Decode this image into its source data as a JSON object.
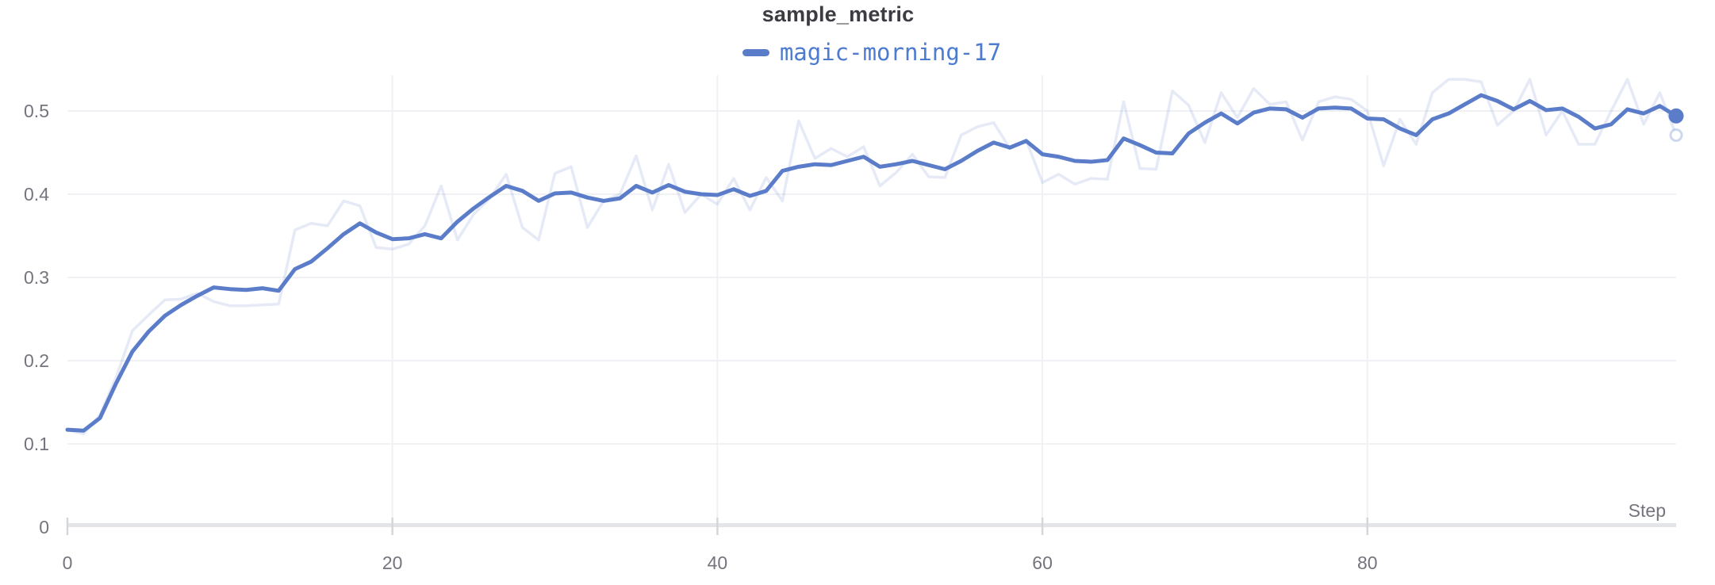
{
  "header": {
    "title": "sample_metric"
  },
  "legend": {
    "run_name": "magic-morning-17"
  },
  "axes": {
    "x_label": "Step",
    "x_ticks": [
      {
        "value": 0,
        "label": "0"
      },
      {
        "value": 20,
        "label": "20"
      },
      {
        "value": 40,
        "label": "40"
      },
      {
        "value": 60,
        "label": "60"
      },
      {
        "value": 80,
        "label": "80"
      }
    ],
    "y_ticks": [
      {
        "value": 0,
        "label": "0"
      },
      {
        "value": 0.1,
        "label": "0.1"
      },
      {
        "value": 0.2,
        "label": "0.2"
      },
      {
        "value": 0.3,
        "label": "0.3"
      },
      {
        "value": 0.4,
        "label": "0.4"
      },
      {
        "value": 0.5,
        "label": "0.5"
      }
    ]
  },
  "colors": {
    "line": "#5b7dc9",
    "legend_text": "#4d7bd0",
    "title_text": "#3b3b42",
    "tick_label": "#75747e",
    "grid": "#f0f1f4",
    "axis_bar": "#e4e5e8",
    "tick": "#d5d6da",
    "background": "#ffffff"
  },
  "chart_data": {
    "type": "line",
    "title": "sample_metric",
    "xlabel": "Step",
    "ylabel": "",
    "x_range": [
      0,
      99
    ],
    "x_step": 1,
    "ylim": [
      0,
      0.54
    ],
    "grid": true,
    "legend_position": "top-center",
    "series": [
      {
        "name": "magic-morning-17",
        "role": "smoothed",
        "values": [
          0.117,
          0.116,
          0.131,
          0.173,
          0.211,
          0.235,
          0.254,
          0.267,
          0.278,
          0.288,
          0.286,
          0.285,
          0.287,
          0.284,
          0.31,
          0.319,
          0.335,
          0.352,
          0.365,
          0.354,
          0.346,
          0.347,
          0.352,
          0.347,
          0.367,
          0.383,
          0.397,
          0.41,
          0.404,
          0.392,
          0.401,
          0.402,
          0.396,
          0.392,
          0.395,
          0.41,
          0.402,
          0.411,
          0.403,
          0.4,
          0.399,
          0.406,
          0.398,
          0.404,
          0.428,
          0.433,
          0.436,
          0.435,
          0.44,
          0.445,
          0.433,
          0.436,
          0.44,
          0.435,
          0.43,
          0.44,
          0.452,
          0.462,
          0.456,
          0.464,
          0.448,
          0.445,
          0.44,
          0.439,
          0.441,
          0.467,
          0.459,
          0.45,
          0.449,
          0.473,
          0.486,
          0.497,
          0.485,
          0.498,
          0.503,
          0.502,
          0.492,
          0.503,
          0.504,
          0.503,
          0.491,
          0.49,
          0.479,
          0.471,
          0.49,
          0.497,
          0.508,
          0.519,
          0.512,
          0.502,
          0.512,
          0.501,
          0.503,
          0.493,
          0.479,
          0.484,
          0.502,
          0.497,
          0.506,
          0.494
        ]
      },
      {
        "name": "magic-morning-17",
        "role": "original-unsmoothed",
        "values": [
          0.117,
          0.112,
          0.135,
          0.18,
          0.236,
          0.255,
          0.273,
          0.274,
          0.281,
          0.271,
          0.266,
          0.266,
          0.267,
          0.268,
          0.357,
          0.365,
          0.362,
          0.392,
          0.386,
          0.336,
          0.334,
          0.34,
          0.362,
          0.41,
          0.345,
          0.376,
          0.395,
          0.424,
          0.36,
          0.345,
          0.425,
          0.433,
          0.36,
          0.392,
          0.4,
          0.446,
          0.381,
          0.436,
          0.378,
          0.4,
          0.388,
          0.419,
          0.381,
          0.42,
          0.392,
          0.488,
          0.443,
          0.455,
          0.445,
          0.457,
          0.41,
          0.426,
          0.448,
          0.421,
          0.42,
          0.471,
          0.481,
          0.486,
          0.455,
          0.465,
          0.414,
          0.424,
          0.412,
          0.419,
          0.418,
          0.511,
          0.431,
          0.43,
          0.524,
          0.507,
          0.462,
          0.522,
          0.492,
          0.527,
          0.508,
          0.511,
          0.465,
          0.511,
          0.517,
          0.514,
          0.5,
          0.434,
          0.49,
          0.46,
          0.522,
          0.538,
          0.538,
          0.535,
          0.483,
          0.5,
          0.538,
          0.471,
          0.5,
          0.46,
          0.46,
          0.5,
          0.538,
          0.484,
          0.522,
          0.471
        ]
      }
    ],
    "end_markers": {
      "smoothed_last": 0.494,
      "original_last": 0.471
    }
  }
}
